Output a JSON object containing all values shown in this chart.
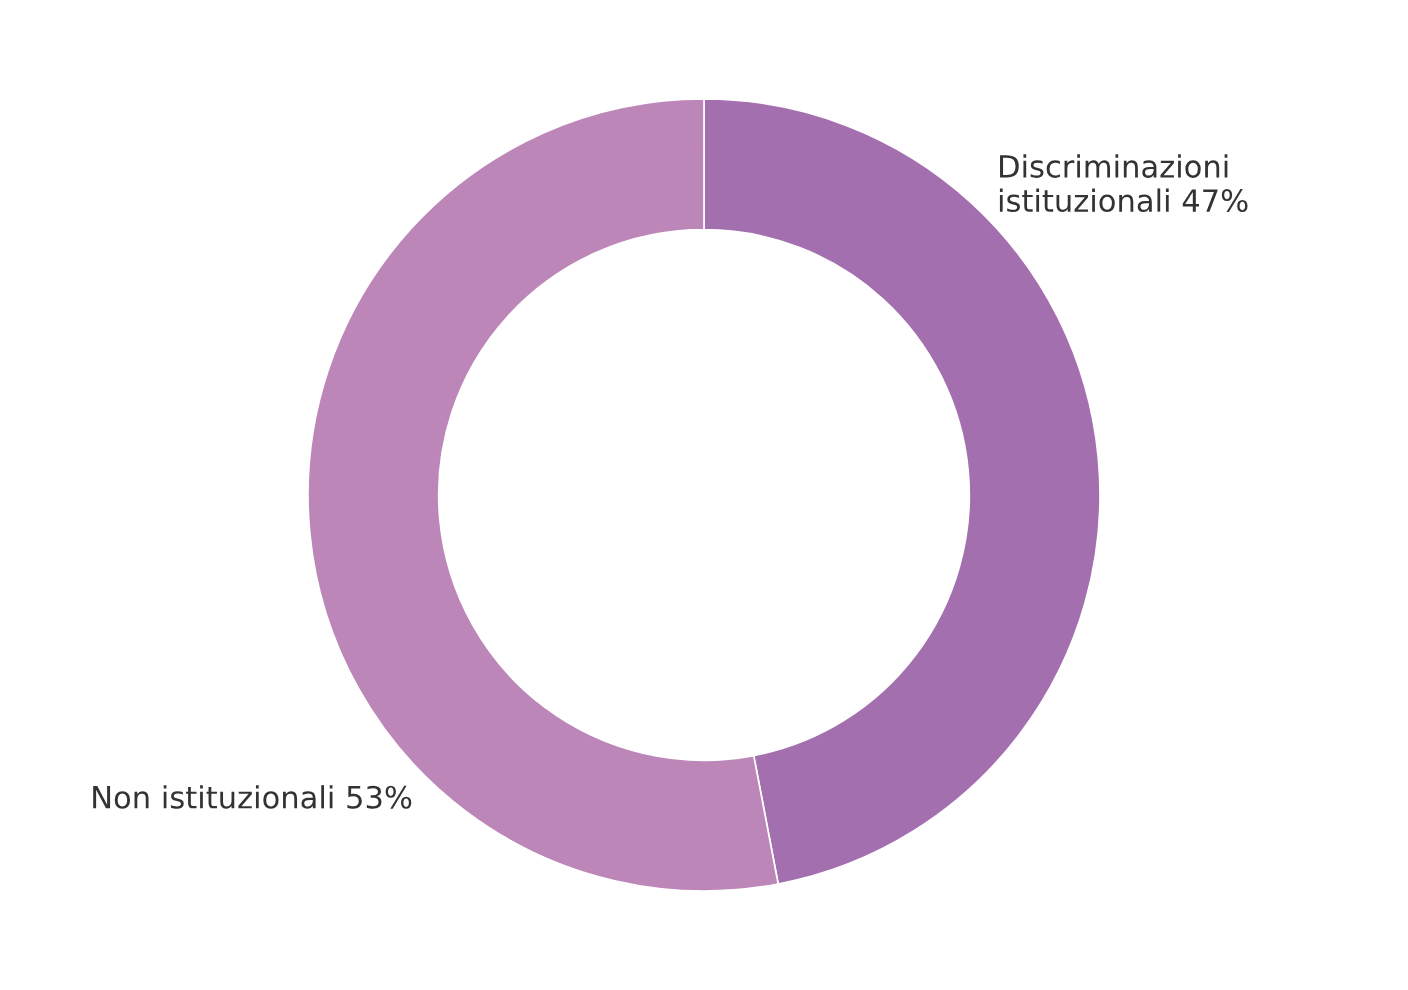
{
  "chart_data": {
    "type": "donut",
    "categories": [
      "Discriminazioni\nistituzionali",
      "Non istituzionali"
    ],
    "values": [
      47,
      53
    ],
    "value_labels": [
      "47%",
      "53%"
    ],
    "colors": [
      "#a36fae",
      "#bc87b8"
    ],
    "legend": false
  }
}
